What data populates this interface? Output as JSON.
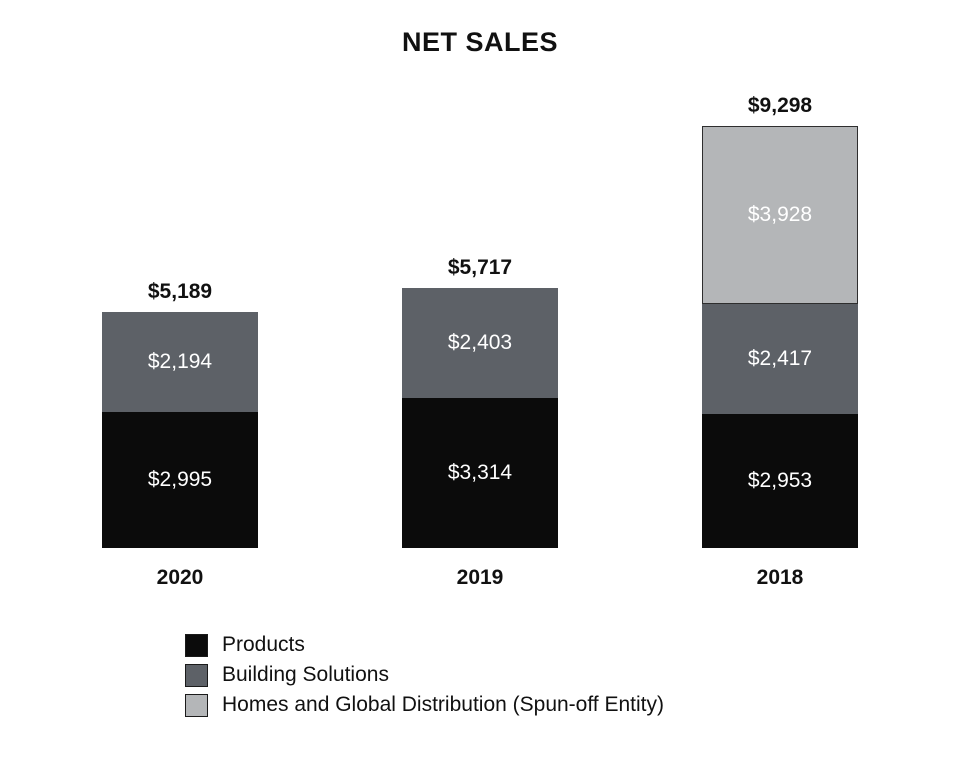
{
  "title": "NET SALES",
  "colors": {
    "products": "#0b0b0b",
    "building_solutions": "#5d6167",
    "homes": "#b4b6b8",
    "page_background": "#ffffff",
    "text": "#111111",
    "segment_label_text": "#ffffff"
  },
  "chart_data": {
    "type": "bar",
    "stacked": true,
    "title": "NET SALES",
    "categories": [
      "2020",
      "2019",
      "2018"
    ],
    "totals_labels": [
      "$5,189",
      "$5,717",
      "$9,298"
    ],
    "totals_values": [
      5189,
      5717,
      9298
    ],
    "series": [
      {
        "name": "Products",
        "color_key": "products",
        "values": [
          2995,
          3314,
          2953
        ],
        "labels": [
          "$2,995",
          "$3,314",
          "$2,953"
        ]
      },
      {
        "name": "Building Solutions",
        "color_key": "building_solutions",
        "values": [
          2194,
          2403,
          2417
        ],
        "labels": [
          "$2,194",
          "$2,403",
          "$2,417"
        ]
      },
      {
        "name": "Homes and Global Distribution (Spun-off Entity)",
        "color_key": "homes",
        "values": [
          0,
          0,
          3928
        ],
        "labels": [
          "",
          "",
          "$3,928"
        ],
        "border": "#2e2e2e"
      }
    ],
    "legend": [
      {
        "label": "Products",
        "color_key": "products"
      },
      {
        "label": "Building Solutions",
        "color_key": "building_solutions"
      },
      {
        "label": "Homes and Global Distribution (Spun-off Entity)",
        "color_key": "homes"
      }
    ],
    "legend_position": "bottom-left",
    "ylim": [
      0,
      9700
    ],
    "grid": false,
    "xlabel": "",
    "ylabel": ""
  }
}
